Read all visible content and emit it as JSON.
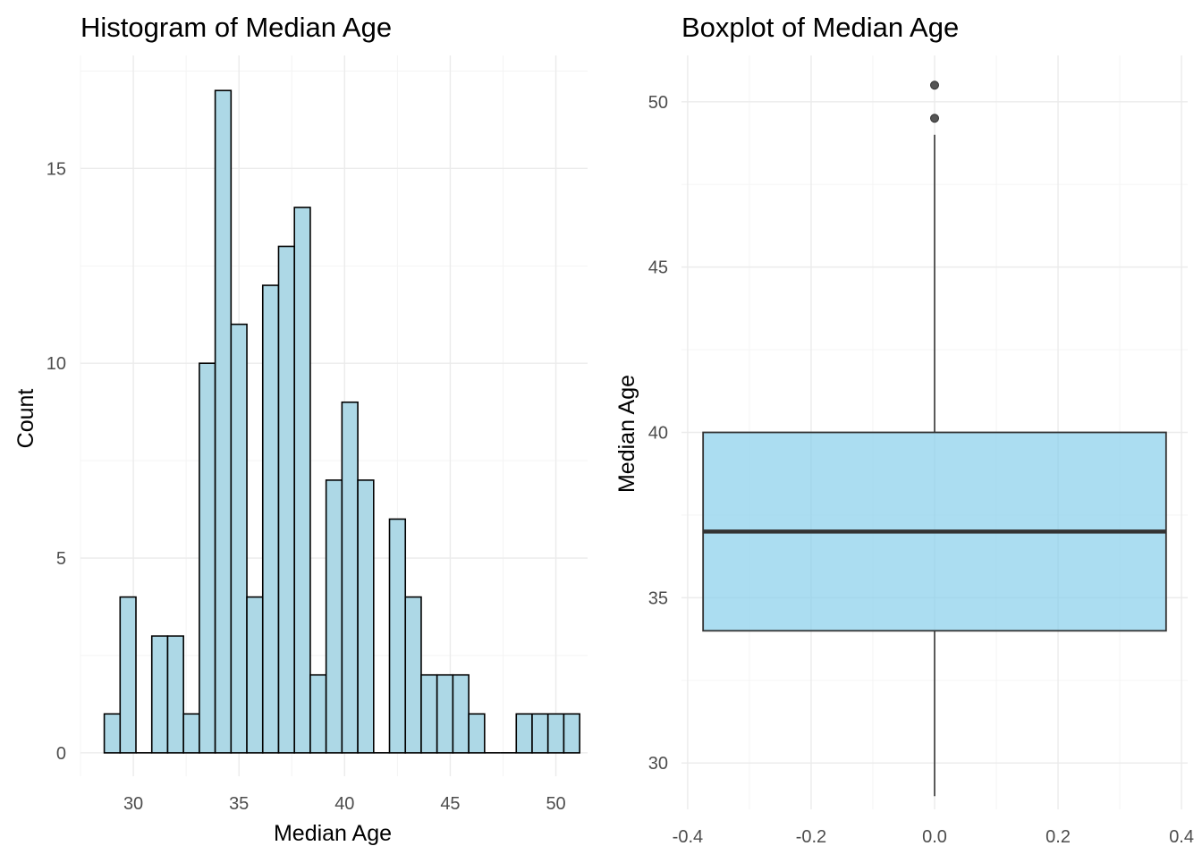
{
  "chart_data": [
    {
      "type": "bar",
      "subtype": "histogram",
      "title": "Histogram of Median Age",
      "xlabel": "Median Age",
      "ylabel": "Count",
      "bin_width": 0.75,
      "bins": [
        {
          "x": 29.0,
          "count": 1
        },
        {
          "x": 29.75,
          "count": 4
        },
        {
          "x": 30.5,
          "count": 0
        },
        {
          "x": 31.25,
          "count": 3
        },
        {
          "x": 32.0,
          "count": 3
        },
        {
          "x": 32.75,
          "count": 1
        },
        {
          "x": 33.5,
          "count": 10
        },
        {
          "x": 34.25,
          "count": 17
        },
        {
          "x": 35.0,
          "count": 11
        },
        {
          "x": 35.75,
          "count": 4
        },
        {
          "x": 36.5,
          "count": 12
        },
        {
          "x": 37.25,
          "count": 13
        },
        {
          "x": 38.0,
          "count": 14
        },
        {
          "x": 38.75,
          "count": 2
        },
        {
          "x": 39.5,
          "count": 7
        },
        {
          "x": 40.25,
          "count": 9
        },
        {
          "x": 41.0,
          "count": 7
        },
        {
          "x": 41.75,
          "count": 0
        },
        {
          "x": 42.5,
          "count": 6
        },
        {
          "x": 43.25,
          "count": 4
        },
        {
          "x": 44.0,
          "count": 2
        },
        {
          "x": 44.75,
          "count": 2
        },
        {
          "x": 45.5,
          "count": 2
        },
        {
          "x": 46.25,
          "count": 1
        },
        {
          "x": 47.0,
          "count": 0
        },
        {
          "x": 47.75,
          "count": 0
        },
        {
          "x": 48.5,
          "count": 1
        },
        {
          "x": 49.25,
          "count": 1
        },
        {
          "x": 50.0,
          "count": 1
        },
        {
          "x": 50.75,
          "count": 1
        }
      ],
      "xlim": [
        27.5,
        51.5
      ],
      "ylim": [
        -0.6,
        17.9
      ],
      "xticks": [
        30,
        35,
        40,
        45,
        50
      ],
      "yticks": [
        0,
        5,
        10,
        15
      ],
      "grid": true,
      "bar_fill": "#add8e6",
      "bar_stroke": "#000000"
    },
    {
      "type": "boxplot",
      "title": "Boxplot of Median Age",
      "xlabel": "",
      "ylabel": "Median Age",
      "box": {
        "x_center": 0.0,
        "half_width": 0.375,
        "lower_whisker": 29.0,
        "q1": 34.0,
        "median": 37.0,
        "q3": 40.0,
        "upper_whisker": 49.0
      },
      "outliers": [
        49.5,
        50.5
      ],
      "xlim": [
        -0.41,
        0.41
      ],
      "ylim": [
        28.6,
        51.4
      ],
      "xticks": [
        "-0.4",
        "-0.2",
        "0.0",
        "0.2",
        "0.4"
      ],
      "yticks": [
        30,
        35,
        40,
        45,
        50
      ],
      "grid": true,
      "box_fill": "#87ceeb"
    }
  ]
}
